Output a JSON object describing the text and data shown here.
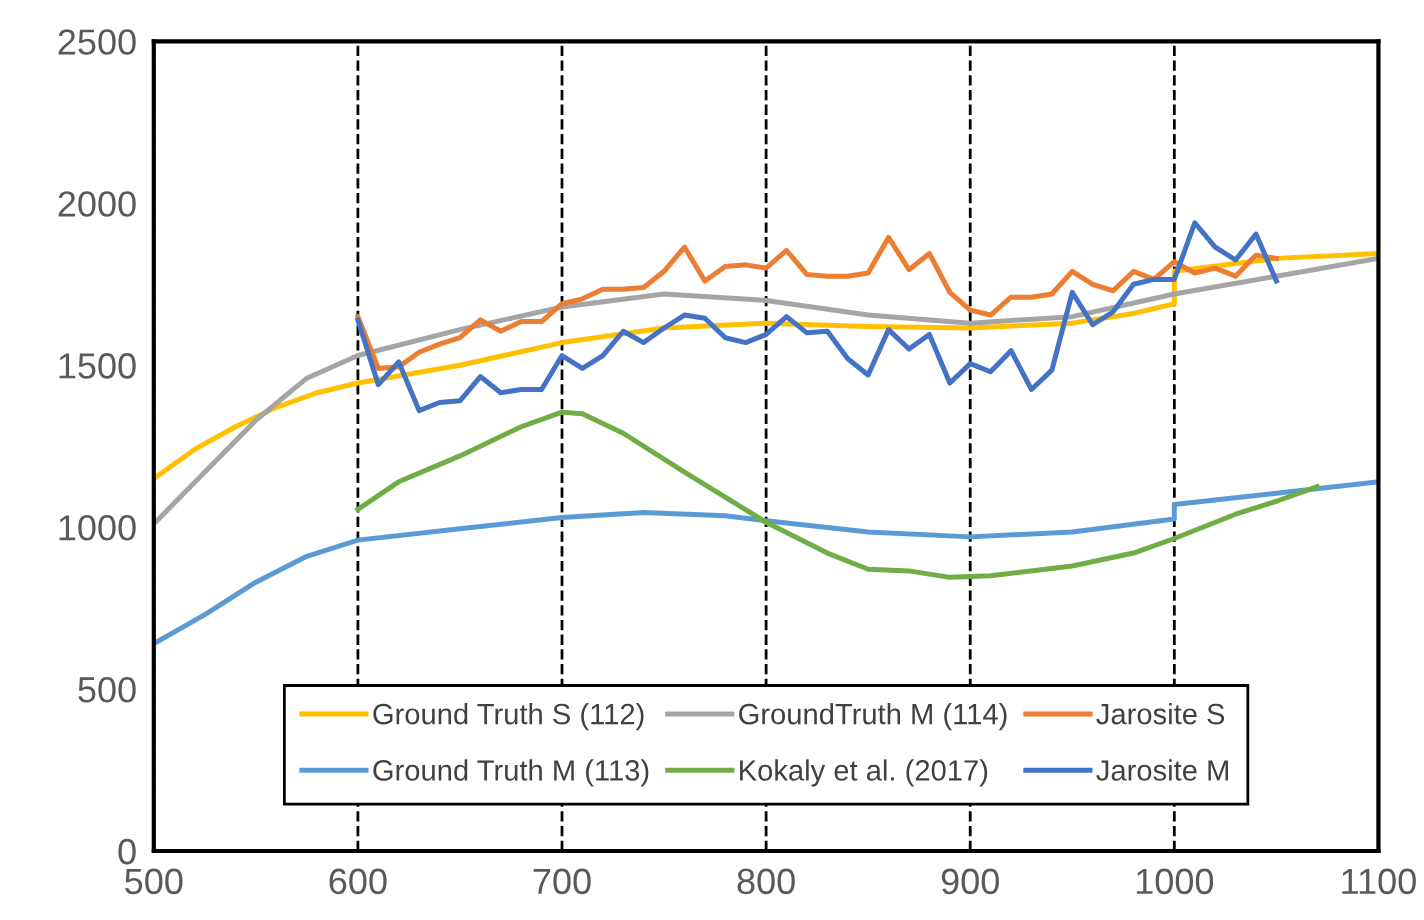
{
  "chart_data": {
    "type": "line",
    "xlim": [
      500,
      1100
    ],
    "ylim": [
      0,
      2500
    ],
    "xticks": [
      500,
      600,
      700,
      800,
      900,
      1000,
      1100
    ],
    "yticks": [
      0,
      500,
      1000,
      1500,
      2000,
      2500
    ],
    "grid": "x",
    "legend": "bottom",
    "marker": "none",
    "line_style": "solid",
    "series": [
      {
        "name": "Ground Truth S (112)",
        "color": "#ffc000",
        "x": [
          500,
          520,
          540,
          560,
          580,
          600,
          650,
          700,
          750,
          800,
          850,
          900,
          950,
          980,
          1000,
          1000,
          1050,
          1100
        ],
        "values": [
          1150,
          1240,
          1310,
          1370,
          1415,
          1445,
          1500,
          1570,
          1615,
          1630,
          1620,
          1615,
          1630,
          1660,
          1690,
          1790,
          1830,
          1845
        ]
      },
      {
        "name": "Ground Truth M (113)",
        "color": "#5b9bd5",
        "x": [
          500,
          525,
          550,
          575,
          600,
          650,
          700,
          740,
          780,
          800,
          850,
          900,
          950,
          1000,
          1000,
          1050,
          1100
        ],
        "values": [
          640,
          730,
          830,
          910,
          960,
          995,
          1030,
          1045,
          1035,
          1020,
          985,
          970,
          985,
          1025,
          1070,
          1105,
          1140
        ]
      },
      {
        "name": "GroundTruth M (114)",
        "color": "#a5a5a5",
        "x": [
          500,
          525,
          550,
          575,
          600,
          650,
          700,
          750,
          800,
          850,
          900,
          950,
          1000,
          1050,
          1100
        ],
        "values": [
          1010,
          1170,
          1330,
          1460,
          1530,
          1610,
          1680,
          1720,
          1700,
          1655,
          1630,
          1650,
          1720,
          1775,
          1830
        ]
      },
      {
        "name": "Kokaly et al. (2017)",
        "color": "#70ad47",
        "x": [
          600,
          620,
          650,
          680,
          700,
          710,
          730,
          760,
          800,
          830,
          850,
          870,
          890,
          910,
          950,
          980,
          1000,
          1030,
          1050,
          1070
        ],
        "values": [
          1055,
          1140,
          1220,
          1310,
          1355,
          1350,
          1290,
          1170,
          1015,
          920,
          870,
          865,
          845,
          850,
          880,
          920,
          965,
          1040,
          1080,
          1125
        ]
      },
      {
        "name": "Jarosite S",
        "color": "#ed7d31",
        "x": [
          600,
          610,
          620,
          630,
          640,
          650,
          660,
          670,
          680,
          690,
          700,
          710,
          720,
          730,
          740,
          750,
          760,
          770,
          780,
          790,
          800,
          810,
          820,
          830,
          840,
          850,
          860,
          870,
          880,
          890,
          900,
          910,
          920,
          930,
          940,
          950,
          960,
          970,
          980,
          990,
          1000,
          1010,
          1020,
          1030,
          1040,
          1050
        ],
        "values": [
          1650,
          1490,
          1495,
          1540,
          1565,
          1585,
          1640,
          1605,
          1635,
          1635,
          1690,
          1705,
          1735,
          1735,
          1740,
          1790,
          1865,
          1760,
          1805,
          1810,
          1800,
          1855,
          1780,
          1775,
          1775,
          1785,
          1895,
          1795,
          1845,
          1725,
          1670,
          1655,
          1710,
          1710,
          1720,
          1790,
          1750,
          1730,
          1790,
          1765,
          1820,
          1785,
          1800,
          1775,
          1840,
          1830
        ]
      },
      {
        "name": "Jarosite M",
        "color": "#4472c4",
        "x": [
          600,
          610,
          620,
          630,
          640,
          650,
          660,
          670,
          680,
          690,
          700,
          710,
          720,
          730,
          740,
          750,
          760,
          770,
          780,
          790,
          800,
          810,
          820,
          830,
          840,
          850,
          860,
          870,
          880,
          890,
          900,
          910,
          920,
          930,
          940,
          950,
          960,
          970,
          980,
          990,
          1000,
          1010,
          1020,
          1030,
          1040,
          1050
        ],
        "values": [
          1640,
          1440,
          1510,
          1360,
          1385,
          1390,
          1465,
          1415,
          1425,
          1425,
          1530,
          1490,
          1530,
          1605,
          1570,
          1615,
          1655,
          1645,
          1585,
          1570,
          1595,
          1650,
          1600,
          1605,
          1520,
          1470,
          1610,
          1550,
          1595,
          1445,
          1505,
          1480,
          1545,
          1425,
          1485,
          1725,
          1625,
          1665,
          1750,
          1765,
          1765,
          1940,
          1865,
          1825,
          1905,
          1760
        ]
      }
    ]
  }
}
